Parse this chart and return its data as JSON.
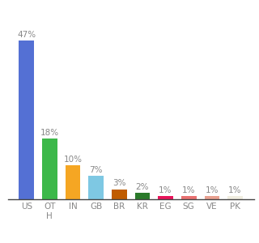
{
  "categories": [
    "US",
    "OT\nH",
    "IN",
    "GB",
    "BR",
    "KR",
    "EG",
    "SG",
    "VE",
    "PK"
  ],
  "values": [
    47,
    18,
    10,
    7,
    3,
    2,
    1,
    1,
    1,
    1
  ],
  "bar_colors": [
    "#5470d4",
    "#3cb84a",
    "#f5a623",
    "#7ec8e3",
    "#c05c00",
    "#2a7a2a",
    "#e8145a",
    "#e87070",
    "#e8a090",
    "#f0ede0"
  ],
  "value_labels": [
    "47%",
    "18%",
    "10%",
    "7%",
    "3%",
    "2%",
    "1%",
    "1%",
    "1%",
    "1%"
  ],
  "ylim": [
    0,
    54
  ],
  "background_color": "#ffffff",
  "bar_width": 0.65,
  "label_fontsize": 7.5,
  "tick_fontsize": 7.5,
  "label_color": "#888888",
  "tick_color": "#888888"
}
